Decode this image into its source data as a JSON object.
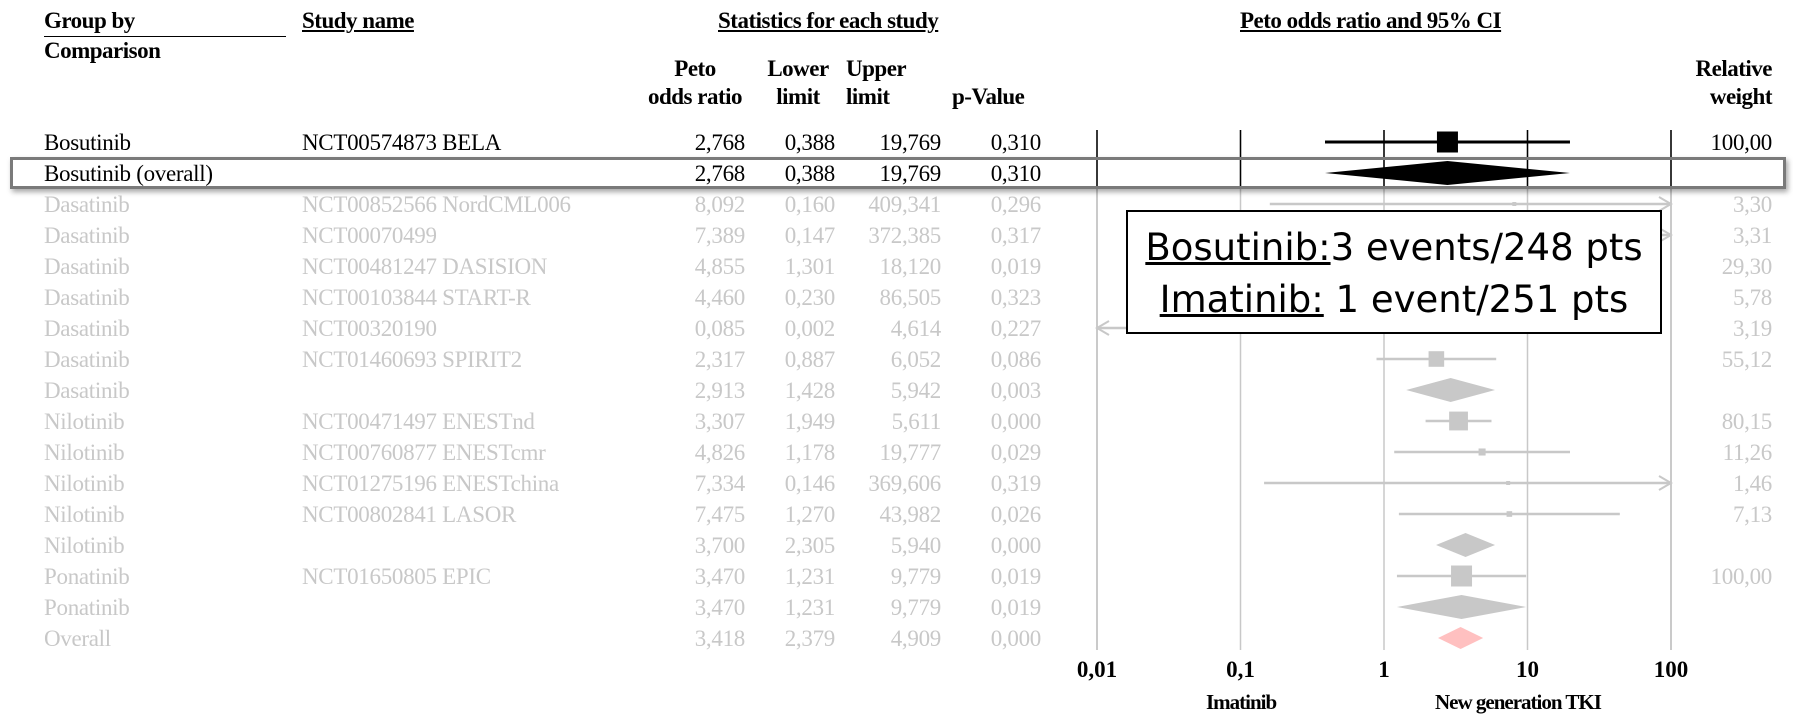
{
  "headers": {
    "group_by": "Group by",
    "comparison": "Comparison",
    "study_name": "Study name",
    "stats": "Statistics for each study",
    "plot": "Peto odds ratio and 95% CI",
    "col_or_1": "Peto",
    "col_or_2": "odds ratio",
    "col_lower_1": "Lower",
    "col_lower_2": "limit",
    "col_upper_1": "Upper",
    "col_upper_2": "limit",
    "col_p": "p-Value",
    "col_weight_1": "Relative",
    "col_weight_2": "weight"
  },
  "callout": {
    "l1_label": "Bosutinib:",
    "l1_value": "3 events/248 pts",
    "l2_label": "Imatinib:",
    "l2_value": " 1 event/251 pts"
  },
  "colors": {
    "active": "#000000",
    "dimmed": "#c8c8c8",
    "overall_diamond": "#ffc0c0",
    "highlight_border": "#7a7a7a"
  },
  "chart_data": {
    "type": "forest",
    "x_scale": "log",
    "xlim": [
      0.01,
      100
    ],
    "x_ticks": [
      "0,01",
      "0,1",
      "1",
      "10",
      "100"
    ],
    "x_tick_values": [
      0.01,
      0.1,
      1,
      10,
      100
    ],
    "x_left_label": "Imatinib",
    "x_right_label": "New generation TKI",
    "rows": [
      {
        "group": "Bosutinib",
        "study": "NCT00574873 BELA",
        "or": "2,768",
        "lower": "0,388",
        "upper": "19,769",
        "p": "0,310",
        "weight": "100,00",
        "or_v": 2.768,
        "lo_v": 0.388,
        "hi_v": 19.769,
        "w_v": 100.0,
        "kind": "study",
        "active": true
      },
      {
        "group": "Bosutinib (overall)",
        "study": "",
        "or": "2,768",
        "lower": "0,388",
        "upper": "19,769",
        "p": "0,310",
        "weight": "",
        "or_v": 2.768,
        "lo_v": 0.388,
        "hi_v": 19.769,
        "kind": "subtotal",
        "active": true
      },
      {
        "group": "Dasatinib",
        "study": "NCT00852566 NordCML006",
        "or": "8,092",
        "lower": "0,160",
        "upper": "409,341",
        "p": "0,296",
        "weight": "3,30",
        "or_v": 8.092,
        "lo_v": 0.16,
        "hi_v": 409.341,
        "w_v": 3.3,
        "kind": "study",
        "active": false
      },
      {
        "group": "Dasatinib",
        "study": "NCT00070499",
        "or": "7,389",
        "lower": "0,147",
        "upper": "372,385",
        "p": "0,317",
        "weight": "3,31",
        "or_v": 7.389,
        "lo_v": 0.147,
        "hi_v": 372.385,
        "w_v": 3.31,
        "kind": "study",
        "active": false
      },
      {
        "group": "Dasatinib",
        "study": "NCT00481247 DASISION",
        "or": "4,855",
        "lower": "1,301",
        "upper": "18,120",
        "p": "0,019",
        "weight": "29,30",
        "or_v": 4.855,
        "lo_v": 1.301,
        "hi_v": 18.12,
        "w_v": 29.3,
        "kind": "study",
        "active": false
      },
      {
        "group": "Dasatinib",
        "study": "NCT00103844 START-R",
        "or": "4,460",
        "lower": "0,230",
        "upper": "86,505",
        "p": "0,323",
        "weight": "5,78",
        "or_v": 4.46,
        "lo_v": 0.23,
        "hi_v": 86.505,
        "w_v": 5.78,
        "kind": "study",
        "active": false
      },
      {
        "group": "Dasatinib",
        "study": "NCT00320190",
        "or": "0,085",
        "lower": "0,002",
        "upper": "4,614",
        "p": "0,227",
        "weight": "3,19",
        "or_v": 0.085,
        "lo_v": 0.002,
        "hi_v": 4.614,
        "w_v": 3.19,
        "kind": "study",
        "active": false
      },
      {
        "group": "Dasatinib",
        "study": "NCT01460693 SPIRIT2",
        "or": "2,317",
        "lower": "0,887",
        "upper": "6,052",
        "p": "0,086",
        "weight": "55,12",
        "or_v": 2.317,
        "lo_v": 0.887,
        "hi_v": 6.052,
        "w_v": 55.12,
        "kind": "study",
        "active": false
      },
      {
        "group": "Dasatinib",
        "study": "",
        "or": "2,913",
        "lower": "1,428",
        "upper": "5,942",
        "p": "0,003",
        "weight": "",
        "or_v": 2.913,
        "lo_v": 1.428,
        "hi_v": 5.942,
        "kind": "subtotal",
        "active": false
      },
      {
        "group": "Nilotinib",
        "study": "NCT00471497 ENESTnd",
        "or": "3,307",
        "lower": "1,949",
        "upper": "5,611",
        "p": "0,000",
        "weight": "80,15",
        "or_v": 3.307,
        "lo_v": 1.949,
        "hi_v": 5.611,
        "w_v": 80.15,
        "kind": "study",
        "active": false
      },
      {
        "group": "Nilotinib",
        "study": "NCT00760877 ENESTcmr",
        "or": "4,826",
        "lower": "1,178",
        "upper": "19,777",
        "p": "0,029",
        "weight": "11,26",
        "or_v": 4.826,
        "lo_v": 1.178,
        "hi_v": 19.777,
        "w_v": 11.26,
        "kind": "study",
        "active": false
      },
      {
        "group": "Nilotinib",
        "study": "NCT01275196 ENESTchina",
        "or": "7,334",
        "lower": "0,146",
        "upper": "369,606",
        "p": "0,319",
        "weight": "1,46",
        "or_v": 7.334,
        "lo_v": 0.146,
        "hi_v": 369.606,
        "w_v": 1.46,
        "kind": "study",
        "active": false
      },
      {
        "group": "Nilotinib",
        "study": "NCT00802841 LASOR",
        "or": "7,475",
        "lower": "1,270",
        "upper": "43,982",
        "p": "0,026",
        "weight": "7,13",
        "or_v": 7.475,
        "lo_v": 1.27,
        "hi_v": 43.982,
        "w_v": 7.13,
        "kind": "study",
        "active": false
      },
      {
        "group": "Nilotinib",
        "study": "",
        "or": "3,700",
        "lower": "2,305",
        "upper": "5,940",
        "p": "0,000",
        "weight": "",
        "or_v": 3.7,
        "lo_v": 2.305,
        "hi_v": 5.94,
        "kind": "subtotal",
        "active": false
      },
      {
        "group": "Ponatinib",
        "study": "NCT01650805 EPIC",
        "or": "3,470",
        "lower": "1,231",
        "upper": "9,779",
        "p": "0,019",
        "weight": "100,00",
        "or_v": 3.47,
        "lo_v": 1.231,
        "hi_v": 9.779,
        "w_v": 100.0,
        "kind": "study",
        "active": false
      },
      {
        "group": "Ponatinib",
        "study": "",
        "or": "3,470",
        "lower": "1,231",
        "upper": "9,779",
        "p": "0,019",
        "weight": "",
        "or_v": 3.47,
        "lo_v": 1.231,
        "hi_v": 9.779,
        "kind": "subtotal",
        "active": false
      },
      {
        "group": "Overall",
        "study": "",
        "or": "3,418",
        "lower": "2,379",
        "upper": "4,909",
        "p": "0,000",
        "weight": "",
        "or_v": 3.418,
        "lo_v": 2.379,
        "hi_v": 4.909,
        "kind": "overall",
        "active": false
      }
    ]
  }
}
